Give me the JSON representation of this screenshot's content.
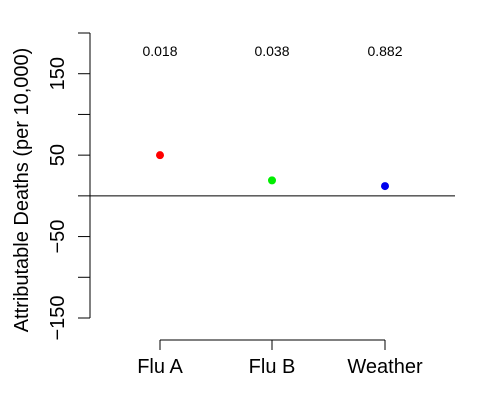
{
  "chart_data": {
    "type": "scatter",
    "title": "",
    "xlabel": "",
    "ylabel": "Attributable Deaths (per 10,000)",
    "ylim": [
      -150,
      200
    ],
    "yticks": [
      -150,
      -50,
      50,
      150
    ],
    "reference_line": 0,
    "grid": false,
    "categories": [
      "Flu A",
      "Flu B",
      "Weather"
    ],
    "values": [
      50,
      19,
      12
    ],
    "colors": [
      "#ff0000",
      "#00ee00",
      "#0000ee"
    ],
    "annotations": [
      "0.018",
      "0.038",
      "0.882"
    ]
  }
}
